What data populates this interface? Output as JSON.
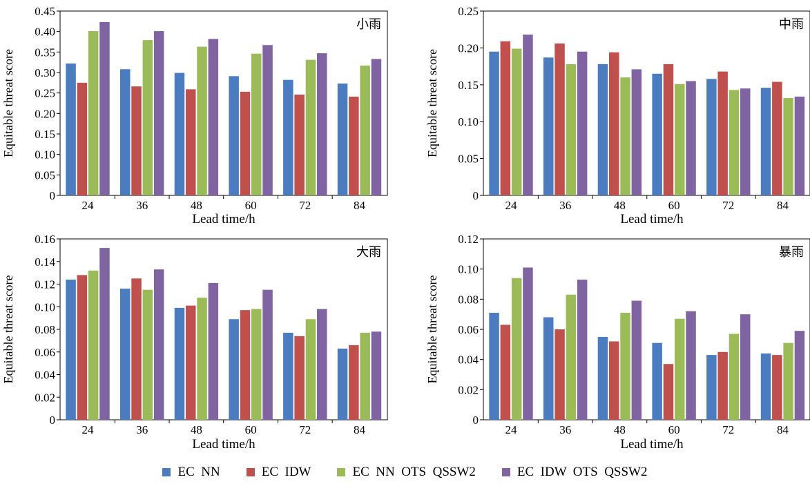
{
  "colors": {
    "EC NN": "#4a7cbf",
    "EC IDW": "#c0504d",
    "EC NN OTS QSSW2": "#9bbb59",
    "EC IDW OTS QSSW2": "#8064a2"
  },
  "legend": [
    "EC  NN",
    "EC  IDW",
    "EC  NN  OTS  QSSW2",
    "EC  IDW  OTS  QSSW2"
  ],
  "chart_data": [
    {
      "type": "bar",
      "title": "小雨",
      "xlabel": "Lead time/h",
      "ylabel": "Equitable threat score",
      "categories": [
        "24",
        "36",
        "48",
        "60",
        "72",
        "84"
      ],
      "ylim": [
        0,
        0.45
      ],
      "yticks": [
        "0",
        "0.05",
        "0.10",
        "0.15",
        "0.20",
        "0.25",
        "0.30",
        "0.35",
        "0.40",
        "0.45"
      ],
      "series": [
        {
          "name": "EC  NN",
          "values": [
            0.322,
            0.308,
            0.299,
            0.291,
            0.282,
            0.273
          ]
        },
        {
          "name": "EC  IDW",
          "values": [
            0.275,
            0.266,
            0.259,
            0.253,
            0.246,
            0.241
          ]
        },
        {
          "name": "EC  NN  OTS  QSSW2",
          "values": [
            0.401,
            0.379,
            0.363,
            0.346,
            0.331,
            0.317
          ]
        },
        {
          "name": "EC  IDW  OTS  QSSW2",
          "values": [
            0.423,
            0.401,
            0.382,
            0.367,
            0.347,
            0.333
          ]
        }
      ]
    },
    {
      "type": "bar",
      "title": "中雨",
      "xlabel": "Lead time/h",
      "ylabel": "Equitable threat score",
      "categories": [
        "24",
        "36",
        "48",
        "60",
        "72",
        "84"
      ],
      "ylim": [
        0,
        0.25
      ],
      "yticks": [
        "0",
        "0.05",
        "0.10",
        "0.15",
        "0.20",
        "0.25"
      ],
      "series": [
        {
          "name": "EC  NN",
          "values": [
            0.195,
            0.187,
            0.178,
            0.165,
            0.158,
            0.146
          ]
        },
        {
          "name": "EC  IDW",
          "values": [
            0.209,
            0.206,
            0.194,
            0.178,
            0.168,
            0.154
          ]
        },
        {
          "name": "EC  NN  OTS  QSSW2",
          "values": [
            0.199,
            0.178,
            0.16,
            0.151,
            0.143,
            0.132
          ]
        },
        {
          "name": "EC  IDW  OTS  QSSW2",
          "values": [
            0.218,
            0.195,
            0.171,
            0.155,
            0.145,
            0.134
          ]
        }
      ]
    },
    {
      "type": "bar",
      "title": "大雨",
      "xlabel": "Lead time/h",
      "ylabel": "Equitable threat score",
      "categories": [
        "24",
        "36",
        "48",
        "60",
        "72",
        "84"
      ],
      "ylim": [
        0,
        0.16
      ],
      "yticks": [
        "0",
        "0.02",
        "0.04",
        "0.06",
        "0.08",
        "0.10",
        "0.12",
        "0.14",
        "0.16"
      ],
      "series": [
        {
          "name": "EC  NN",
          "values": [
            0.124,
            0.116,
            0.099,
            0.089,
            0.077,
            0.063
          ]
        },
        {
          "name": "EC  IDW",
          "values": [
            0.128,
            0.125,
            0.101,
            0.097,
            0.074,
            0.066
          ]
        },
        {
          "name": "EC  NN  OTS  QSSW2",
          "values": [
            0.132,
            0.115,
            0.108,
            0.098,
            0.089,
            0.077
          ]
        },
        {
          "name": "EC  IDW  OTS  QSSW2",
          "values": [
            0.152,
            0.133,
            0.121,
            0.115,
            0.098,
            0.078
          ]
        }
      ]
    },
    {
      "type": "bar",
      "title": "暴雨",
      "xlabel": "Lead time/h",
      "ylabel": "Equitable threat score",
      "categories": [
        "24",
        "36",
        "48",
        "60",
        "72",
        "84"
      ],
      "ylim": [
        0,
        0.12
      ],
      "yticks": [
        "0",
        "0.02",
        "0.04",
        "0.06",
        "0.08",
        "0.10",
        "0.12"
      ],
      "series": [
        {
          "name": "EC  NN",
          "values": [
            0.071,
            0.068,
            0.055,
            0.051,
            0.043,
            0.044
          ]
        },
        {
          "name": "EC  IDW",
          "values": [
            0.063,
            0.06,
            0.052,
            0.037,
            0.045,
            0.043
          ]
        },
        {
          "name": "EC  NN  OTS  QSSW2",
          "values": [
            0.094,
            0.083,
            0.071,
            0.067,
            0.057,
            0.051
          ]
        },
        {
          "name": "EC  IDW  OTS  QSSW2",
          "values": [
            0.101,
            0.093,
            0.079,
            0.072,
            0.07,
            0.059
          ]
        }
      ]
    }
  ]
}
